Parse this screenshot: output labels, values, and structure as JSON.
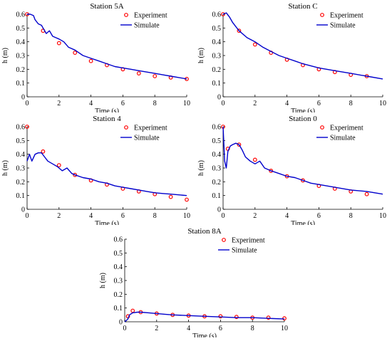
{
  "colors": {
    "experiment": "#ff0000",
    "simulate": "#0000cc",
    "axis": "#000000"
  },
  "chart_data": [
    {
      "type": "scatter+line",
      "title": "Station 5A",
      "xlabel": "Time (s)",
      "ylabel": "h (m)",
      "xlim": [
        0,
        10
      ],
      "ylim": [
        0,
        0.6
      ],
      "xticks": [
        "0",
        "2",
        "4",
        "6",
        "8",
        "10"
      ],
      "yticks": [
        "0",
        "0.1",
        "0.2",
        "0.3",
        "0.4",
        "0.5",
        "0.6"
      ],
      "legend": {
        "position": "top-right",
        "entries": [
          "Experiment",
          "Simulate"
        ]
      },
      "series": [
        {
          "name": "Experiment",
          "style": "markers",
          "x": [
            0,
            1,
            2,
            3,
            4,
            5,
            6,
            7,
            8,
            9,
            10
          ],
          "y": [
            0.6,
            0.48,
            0.39,
            0.32,
            0.26,
            0.23,
            0.2,
            0.17,
            0.15,
            0.14,
            0.13
          ]
        },
        {
          "name": "Simulate",
          "style": "line",
          "x": [
            0,
            0.2,
            0.4,
            0.5,
            0.7,
            0.9,
            1.0,
            1.2,
            1.4,
            1.6,
            1.8,
            2.0,
            2.3,
            2.6,
            3.0,
            3.5,
            4.0,
            4.5,
            5.0,
            5.5,
            6.0,
            6.5,
            7.0,
            7.5,
            8.0,
            8.5,
            9.0,
            9.5,
            10.0
          ],
          "y": [
            0.6,
            0.6,
            0.59,
            0.56,
            0.53,
            0.52,
            0.5,
            0.46,
            0.48,
            0.44,
            0.43,
            0.42,
            0.4,
            0.36,
            0.34,
            0.3,
            0.28,
            0.26,
            0.24,
            0.22,
            0.21,
            0.2,
            0.19,
            0.18,
            0.17,
            0.16,
            0.15,
            0.14,
            0.13
          ]
        }
      ]
    },
    {
      "type": "scatter+line",
      "title": "Station C",
      "xlabel": "Time (s)",
      "ylabel": "h (m)",
      "xlim": [
        0,
        10
      ],
      "ylim": [
        0,
        0.6
      ],
      "xticks": [
        "0",
        "2",
        "4",
        "6",
        "8",
        "10"
      ],
      "yticks": [
        "0",
        "0.1",
        "0.2",
        "0.3",
        "0.4",
        "0.5",
        "0.6"
      ],
      "legend": {
        "position": "top-right",
        "entries": [
          "Experiment",
          "Simulate"
        ]
      },
      "series": [
        {
          "name": "Experiment",
          "style": "markers",
          "x": [
            0,
            1,
            2,
            3,
            4,
            5,
            6,
            7,
            8,
            9
          ],
          "y": [
            0.6,
            0.48,
            0.38,
            0.32,
            0.27,
            0.23,
            0.2,
            0.18,
            0.16,
            0.15
          ]
        },
        {
          "name": "Simulate",
          "style": "line",
          "x": [
            0,
            0.2,
            0.4,
            0.6,
            0.8,
            1.0,
            1.5,
            2.0,
            2.5,
            3.0,
            3.5,
            4.0,
            4.5,
            5.0,
            6.0,
            7.0,
            8.0,
            9.0,
            10.0
          ],
          "y": [
            0.6,
            0.61,
            0.58,
            0.54,
            0.51,
            0.48,
            0.43,
            0.4,
            0.36,
            0.33,
            0.3,
            0.28,
            0.26,
            0.24,
            0.21,
            0.19,
            0.17,
            0.15,
            0.13
          ]
        }
      ]
    },
    {
      "type": "scatter+line",
      "title": "Station 4",
      "xlabel": "Time (s)",
      "ylabel": "h (m)",
      "xlim": [
        0,
        10
      ],
      "ylim": [
        0,
        0.6
      ],
      "xticks": [
        "0",
        "2",
        "4",
        "6",
        "8",
        "10"
      ],
      "yticks": [
        "0",
        "0.1",
        "0.2",
        "0.3",
        "0.4",
        "0.5",
        "0.6"
      ],
      "legend": {
        "position": "top-right",
        "entries": [
          "Experiment",
          "Simulate"
        ]
      },
      "series": [
        {
          "name": "Experiment",
          "style": "markers",
          "x": [
            0,
            1,
            2,
            3,
            4,
            5,
            6,
            7,
            8,
            9,
            10
          ],
          "y": [
            0.6,
            0.42,
            0.32,
            0.25,
            0.21,
            0.18,
            0.15,
            0.13,
            0.11,
            0.09,
            0.07
          ]
        },
        {
          "name": "Simulate",
          "style": "line",
          "x": [
            0,
            0.15,
            0.3,
            0.5,
            0.7,
            0.9,
            1.1,
            1.3,
            1.6,
            1.9,
            2.2,
            2.5,
            2.8,
            3.0,
            3.5,
            4.0,
            4.5,
            5.0,
            5.5,
            6.0,
            6.5,
            7.0,
            7.5,
            8.0,
            8.5,
            9.0,
            9.5,
            10.0
          ],
          "y": [
            0.35,
            0.4,
            0.35,
            0.4,
            0.41,
            0.41,
            0.38,
            0.35,
            0.33,
            0.31,
            0.28,
            0.3,
            0.26,
            0.25,
            0.23,
            0.22,
            0.2,
            0.19,
            0.17,
            0.16,
            0.15,
            0.14,
            0.13,
            0.12,
            0.115,
            0.11,
            0.105,
            0.1
          ]
        }
      ]
    },
    {
      "type": "scatter+line",
      "title": "Station 0",
      "xlabel": "Time (s)",
      "ylabel": "h (m)",
      "xlim": [
        0,
        10
      ],
      "ylim": [
        0,
        0.6
      ],
      "xticks": [
        "0",
        "2",
        "4",
        "6",
        "8",
        "10"
      ],
      "yticks": [
        "0",
        "0.1",
        "0.2",
        "0.3",
        "0.4",
        "0.5",
        "0.6"
      ],
      "legend": {
        "position": "top-right",
        "entries": [
          "Experiment",
          "Simulate"
        ]
      },
      "series": [
        {
          "name": "Experiment",
          "style": "markers",
          "x": [
            0,
            0.3,
            1,
            2,
            3,
            4,
            5,
            6,
            7,
            8,
            9
          ],
          "y": [
            0.6,
            0.44,
            0.47,
            0.36,
            0.28,
            0.24,
            0.21,
            0.17,
            0.15,
            0.13,
            0.11
          ]
        },
        {
          "name": "Simulate",
          "style": "line",
          "x": [
            0,
            0.1,
            0.2,
            0.3,
            0.45,
            0.6,
            0.8,
            1.0,
            1.2,
            1.4,
            1.7,
            2.0,
            2.3,
            2.6,
            3.0,
            3.5,
            4.0,
            4.5,
            5.0,
            5.5,
            6.0,
            7.0,
            8.0,
            9.0,
            10.0
          ],
          "y": [
            0.6,
            0.35,
            0.3,
            0.42,
            0.46,
            0.47,
            0.48,
            0.47,
            0.43,
            0.38,
            0.35,
            0.33,
            0.35,
            0.3,
            0.28,
            0.26,
            0.24,
            0.23,
            0.21,
            0.19,
            0.18,
            0.16,
            0.14,
            0.13,
            0.11
          ]
        }
      ]
    },
    {
      "type": "scatter+line",
      "title": "Station 8A",
      "xlabel": "Time (s)",
      "ylabel": "h (m)",
      "xlim": [
        0,
        10
      ],
      "ylim": [
        0,
        0.6
      ],
      "xticks": [
        "0",
        "2",
        "4",
        "6",
        "8",
        "10"
      ],
      "yticks": [
        "0",
        "0.1",
        "0.2",
        "0.3",
        "0.4",
        "0.5",
        "0.6"
      ],
      "legend": {
        "position": "top-right",
        "entries": [
          "Experiment",
          "Simulate"
        ]
      },
      "series": [
        {
          "name": "Experiment",
          "style": "markers",
          "x": [
            0.2,
            0.5,
            1,
            2,
            3,
            4,
            5,
            6,
            7,
            8,
            9,
            10
          ],
          "y": [
            0.04,
            0.08,
            0.07,
            0.06,
            0.05,
            0.045,
            0.04,
            0.04,
            0.035,
            0.03,
            0.03,
            0.025
          ]
        },
        {
          "name": "Simulate",
          "style": "line",
          "x": [
            0,
            0.2,
            0.3,
            0.5,
            0.8,
            1.0,
            1.5,
            2.0,
            2.5,
            3.0,
            4.0,
            5.0,
            6.0,
            7.0,
            8.0,
            9.0,
            10.0
          ],
          "y": [
            0.0,
            0.02,
            0.05,
            0.065,
            0.07,
            0.07,
            0.065,
            0.06,
            0.055,
            0.05,
            0.045,
            0.04,
            0.035,
            0.03,
            0.03,
            0.025,
            0.02
          ]
        }
      ]
    }
  ]
}
